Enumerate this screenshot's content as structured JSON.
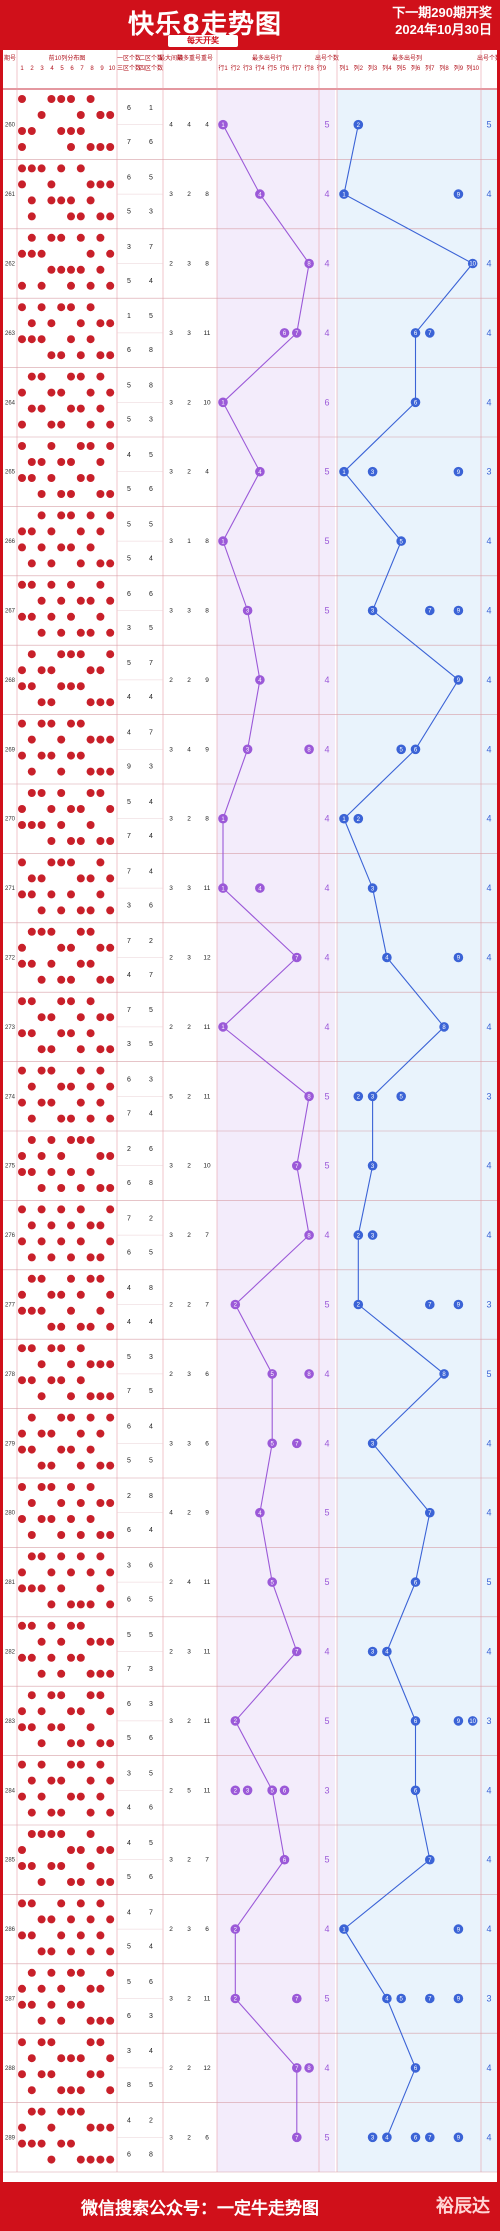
{
  "header": {
    "title": "快乐8走势图",
    "subtitle": "每天开奖",
    "next_draw": "下一期290期开奖",
    "date": "2024年10月30日"
  },
  "footer": {
    "text": "微信搜索公众号：一定牛走势图",
    "brand": "裕辰达"
  },
  "columns": {
    "issue": "期号",
    "grid": "前10列分布图",
    "grid_cols": [
      "1",
      "2",
      "3",
      "4",
      "5",
      "6",
      "7",
      "8",
      "9",
      "10"
    ],
    "zone1": "一区个数",
    "zone2": "二区个数",
    "zone3": "三区个数",
    "zone4": "四区个数",
    "max_gap": "最大间隔",
    "max_repeat": "最多重号",
    "repeat": "重号",
    "most_row": "最多出号行",
    "row_ticks": [
      "行1",
      "行2",
      "行3",
      "行4",
      "行5",
      "行6",
      "行7",
      "行8",
      "行9"
    ],
    "count": "出号个数",
    "most_col": "最多出号列",
    "col_ticks": [
      "列1",
      "列2",
      "列3",
      "列4",
      "列5",
      "列6",
      "列7",
      "列8",
      "列9",
      "列10"
    ],
    "count2": "出号个数"
  },
  "colors": {
    "red": "#d0101a",
    "ball": "#c8202a",
    "purple": "#9b59d8",
    "purple_bg": "#f3ecfb",
    "blue": "#3b63d6",
    "blue_bg": "#e9f3fc"
  },
  "chart_data": {
    "type": "table",
    "issues": [
      "260",
      "261",
      "262",
      "263",
      "264",
      "265",
      "266",
      "267",
      "268",
      "269",
      "270",
      "271",
      "272",
      "273",
      "274",
      "275",
      "276",
      "277",
      "278",
      "279",
      "280",
      "281",
      "282",
      "283",
      "284",
      "285",
      "286",
      "287",
      "288",
      "289"
    ],
    "zones": [
      [
        6,
        1,
        7,
        6
      ],
      [
        6,
        5,
        5,
        3
      ],
      [
        3,
        7,
        5,
        4
      ],
      [
        1,
        5,
        6,
        8
      ],
      [
        5,
        8,
        5,
        3
      ],
      [
        4,
        5,
        5,
        6
      ],
      [
        5,
        5,
        5,
        4
      ],
      [
        6,
        6,
        3,
        5
      ],
      [
        5,
        7,
        4,
        4
      ],
      [
        4,
        7,
        9,
        3
      ],
      [
        5,
        4,
        7,
        4
      ],
      [
        7,
        4,
        3,
        6
      ],
      [
        7,
        2,
        4,
        7
      ],
      [
        7,
        5,
        3,
        5
      ],
      [
        6,
        3,
        7,
        4
      ],
      [
        2,
        6,
        6,
        8
      ],
      [
        7,
        2,
        6,
        5
      ],
      [
        4,
        8,
        4,
        4
      ],
      [
        5,
        3,
        7,
        5
      ],
      [
        6,
        4,
        5,
        5
      ],
      [
        2,
        8,
        6,
        4
      ],
      [
        3,
        6,
        6,
        5
      ],
      [
        5,
        5,
        7,
        3
      ],
      [
        6,
        3,
        5,
        6
      ],
      [
        3,
        5,
        4,
        6
      ],
      [
        4,
        5,
        5,
        6
      ],
      [
        4,
        7,
        5,
        4
      ],
      [
        5,
        6,
        6,
        3
      ],
      [
        3,
        4,
        8,
        5
      ],
      [
        4,
        2,
        6,
        8
      ]
    ],
    "gap_repeat": [
      [
        4,
        4,
        4
      ],
      [
        3,
        2,
        8
      ],
      [
        2,
        3,
        8
      ],
      [
        3,
        3,
        11
      ],
      [
        3,
        2,
        10
      ],
      [
        3,
        2,
        4
      ],
      [
        3,
        1,
        8
      ],
      [
        3,
        3,
        8
      ],
      [
        2,
        2,
        9
      ],
      [
        3,
        4,
        9
      ],
      [
        3,
        2,
        8
      ],
      [
        3,
        3,
        11
      ],
      [
        2,
        3,
        12
      ],
      [
        2,
        2,
        11
      ],
      [
        5,
        2,
        11
      ],
      [
        3,
        2,
        10
      ],
      [
        3,
        2,
        7
      ],
      [
        2,
        2,
        7
      ],
      [
        2,
        3,
        6
      ],
      [
        3,
        3,
        6
      ],
      [
        4,
        2,
        9
      ],
      [
        2,
        4,
        11
      ],
      [
        2,
        3,
        11
      ],
      [
        3,
        2,
        11
      ],
      [
        2,
        5,
        11
      ],
      [
        3,
        2,
        7
      ],
      [
        2,
        3,
        6
      ],
      [
        3,
        2,
        11
      ],
      [
        2,
        2,
        12
      ],
      [
        3,
        2,
        6
      ]
    ],
    "most_row_line": [
      1,
      4,
      8,
      7,
      1,
      4,
      1,
      3,
      4,
      3,
      1,
      1,
      7,
      1,
      8,
      7,
      8,
      2,
      5,
      5,
      4,
      5,
      7,
      2,
      5,
      6,
      2,
      2,
      7,
      7
    ],
    "most_row_extra": [
      [],
      [],
      [],
      [
        6
      ],
      [],
      [],
      [],
      [],
      [],
      [
        8
      ],
      [],
      [
        4
      ],
      [],
      [],
      [],
      [],
      [],
      [],
      [
        8
      ],
      [
        7
      ],
      [],
      [],
      [],
      [],
      [
        2,
        3,
        5,
        6
      ],
      [],
      [],
      [
        7
      ],
      [
        8
      ],
      []
    ],
    "row_count": [
      5,
      4,
      4,
      4,
      6,
      5,
      5,
      5,
      4,
      4,
      4,
      4,
      4,
      4,
      5,
      5,
      4,
      5,
      4,
      4,
      5,
      5,
      4,
      5,
      3,
      5,
      4,
      5,
      4,
      5
    ],
    "most_col_line": [
      2,
      1,
      10,
      6,
      6,
      1,
      5,
      3,
      9,
      6,
      1,
      3,
      4,
      8,
      3,
      3,
      2,
      2,
      8,
      3,
      7,
      6,
      4,
      6,
      6,
      7,
      1,
      4,
      6,
      4
    ],
    "most_col_extra": [
      [],
      [
        9
      ],
      [],
      [
        7
      ],
      [],
      [
        3,
        9
      ],
      [],
      [
        7,
        9
      ],
      [],
      [
        5
      ],
      [
        2
      ],
      [],
      [
        9
      ],
      [],
      [
        2,
        5
      ],
      [],
      [
        3
      ],
      [
        7,
        9
      ],
      [],
      [],
      [],
      [],
      [
        3
      ],
      [
        9,
        10
      ],
      [],
      [],
      [
        9
      ],
      [
        5,
        7,
        9
      ],
      [],
      [
        3,
        6,
        7,
        9
      ]
    ],
    "col_count": [
      5,
      4,
      4,
      4,
      4,
      3,
      4,
      4,
      4,
      4,
      4,
      4,
      4,
      4,
      3,
      4,
      4,
      3,
      5,
      4,
      4,
      5,
      4,
      3,
      4,
      4,
      4,
      3,
      4,
      4
    ],
    "grid_hits": [
      [
        1,
        4,
        5,
        6,
        8,
        9,
        10,
        3,
        7,
        9,
        1,
        5,
        7,
        2,
        6,
        10,
        1,
        6,
        8,
        9
      ],
      [
        1,
        2,
        3,
        5,
        7,
        8,
        9,
        1,
        4,
        10,
        2,
        4,
        6,
        8,
        5,
        6,
        9,
        2,
        7,
        10
      ],
      [
        2,
        4,
        5,
        7,
        9,
        3,
        8,
        10,
        1,
        2,
        5,
        7,
        9,
        4,
        6,
        3,
        8,
        10,
        1,
        6
      ],
      [
        1,
        3,
        5,
        6,
        8,
        2,
        4,
        7,
        9,
        10,
        1,
        3,
        6,
        8,
        2,
        5,
        7,
        9,
        4,
        10
      ],
      [
        2,
        3,
        6,
        7,
        9,
        1,
        4,
        5,
        8,
        10,
        2,
        6,
        7,
        3,
        9,
        1,
        5,
        8,
        4,
        10
      ],
      [
        1,
        4,
        7,
        8,
        10,
        2,
        3,
        5,
        6,
        9,
        1,
        4,
        8,
        2,
        7,
        10,
        3,
        5,
        6,
        9
      ],
      [
        3,
        5,
        6,
        8,
        10,
        1,
        2,
        4,
        7,
        9,
        3,
        6,
        8,
        1,
        5,
        10,
        2,
        4,
        7,
        9
      ],
      [
        1,
        2,
        4,
        6,
        9,
        3,
        5,
        7,
        8,
        10,
        1,
        4,
        6,
        2,
        9,
        5,
        8,
        3,
        7,
        10
      ],
      [
        2,
        5,
        6,
        7,
        10,
        1,
        3,
        4,
        8,
        9,
        2,
        5,
        7,
        1,
        6,
        10,
        4,
        8,
        3,
        9
      ],
      [
        1,
        3,
        4,
        6,
        7,
        2,
        5,
        8,
        9,
        10,
        1,
        3,
        7,
        4,
        6,
        2,
        9,
        5,
        8,
        10
      ],
      [
        2,
        3,
        5,
        8,
        9,
        1,
        4,
        6,
        7,
        10,
        2,
        3,
        8,
        1,
        5,
        9,
        4,
        6,
        7,
        10
      ],
      [
        1,
        4,
        5,
        6,
        9,
        2,
        3,
        7,
        8,
        10,
        1,
        4,
        9,
        2,
        6,
        7,
        3,
        5,
        8,
        10
      ],
      [
        2,
        3,
        4,
        7,
        8,
        1,
        5,
        6,
        9,
        10,
        2,
        4,
        7,
        1,
        8,
        5,
        3,
        6,
        9,
        10
      ],
      [
        1,
        2,
        5,
        6,
        8,
        3,
        4,
        7,
        9,
        10,
        1,
        5,
        8,
        2,
        6,
        3,
        9,
        4,
        7,
        10
      ],
      [
        1,
        3,
        4,
        7,
        9,
        2,
        5,
        6,
        8,
        10,
        1,
        3,
        7,
        4,
        9,
        2,
        6,
        5,
        8,
        10
      ],
      [
        2,
        4,
        6,
        7,
        8,
        1,
        3,
        5,
        9,
        10,
        2,
        6,
        8,
        1,
        4,
        9,
        3,
        5,
        7,
        10
      ],
      [
        1,
        3,
        5,
        7,
        10,
        2,
        4,
        6,
        8,
        9,
        1,
        5,
        7,
        3,
        10,
        2,
        8,
        4,
        6,
        9
      ],
      [
        2,
        3,
        6,
        8,
        9,
        1,
        4,
        5,
        7,
        10,
        2,
        6,
        9,
        1,
        3,
        8,
        4,
        5,
        7,
        10
      ],
      [
        1,
        2,
        4,
        5,
        7,
        3,
        6,
        8,
        9,
        10,
        1,
        4,
        7,
        2,
        5,
        9,
        3,
        6,
        8,
        10
      ],
      [
        2,
        5,
        6,
        8,
        10,
        1,
        3,
        4,
        7,
        9,
        2,
        6,
        8,
        1,
        5,
        10,
        3,
        4,
        7,
        9
      ],
      [
        1,
        3,
        4,
        6,
        8,
        2,
        5,
        7,
        9,
        10,
        1,
        4,
        8,
        3,
        6,
        2,
        9,
        5,
        7,
        10
      ],
      [
        2,
        3,
        5,
        7,
        9,
        1,
        4,
        6,
        8,
        10,
        2,
        5,
        9,
        1,
        3,
        7,
        4,
        6,
        8,
        10
      ],
      [
        1,
        2,
        4,
        6,
        7,
        3,
        5,
        8,
        9,
        10,
        1,
        4,
        6,
        2,
        7,
        3,
        10,
        5,
        8,
        9
      ],
      [
        2,
        4,
        5,
        8,
        9,
        1,
        3,
        6,
        7,
        10,
        2,
        4,
        8,
        1,
        5,
        9,
        3,
        6,
        7,
        10
      ],
      [
        1,
        3,
        6,
        7,
        9,
        2,
        4,
        5,
        8,
        10,
        1,
        6,
        9,
        3,
        7,
        2,
        5,
        4,
        8,
        10
      ],
      [
        2,
        3,
        4,
        5,
        8,
        1,
        6,
        7,
        9,
        10,
        2,
        4,
        5,
        1,
        8,
        3,
        7,
        6,
        9,
        10
      ],
      [
        1,
        2,
        5,
        7,
        9,
        3,
        4,
        6,
        8,
        10,
        1,
        5,
        7,
        2,
        9,
        4,
        8,
        3,
        6,
        10
      ],
      [
        2,
        4,
        6,
        7,
        10,
        1,
        3,
        5,
        8,
        9,
        2,
        6,
        7,
        1,
        4,
        10,
        5,
        3,
        8,
        9
      ],
      [
        1,
        3,
        4,
        8,
        9,
        2,
        5,
        6,
        7,
        10,
        1,
        4,
        8,
        3,
        9,
        2,
        6,
        5,
        7,
        10
      ],
      [
        2,
        3,
        5,
        6,
        7,
        1,
        4,
        8,
        9,
        10,
        2,
        5,
        6,
        1,
        3,
        7,
        4,
        8,
        9,
        10
      ]
    ]
  }
}
